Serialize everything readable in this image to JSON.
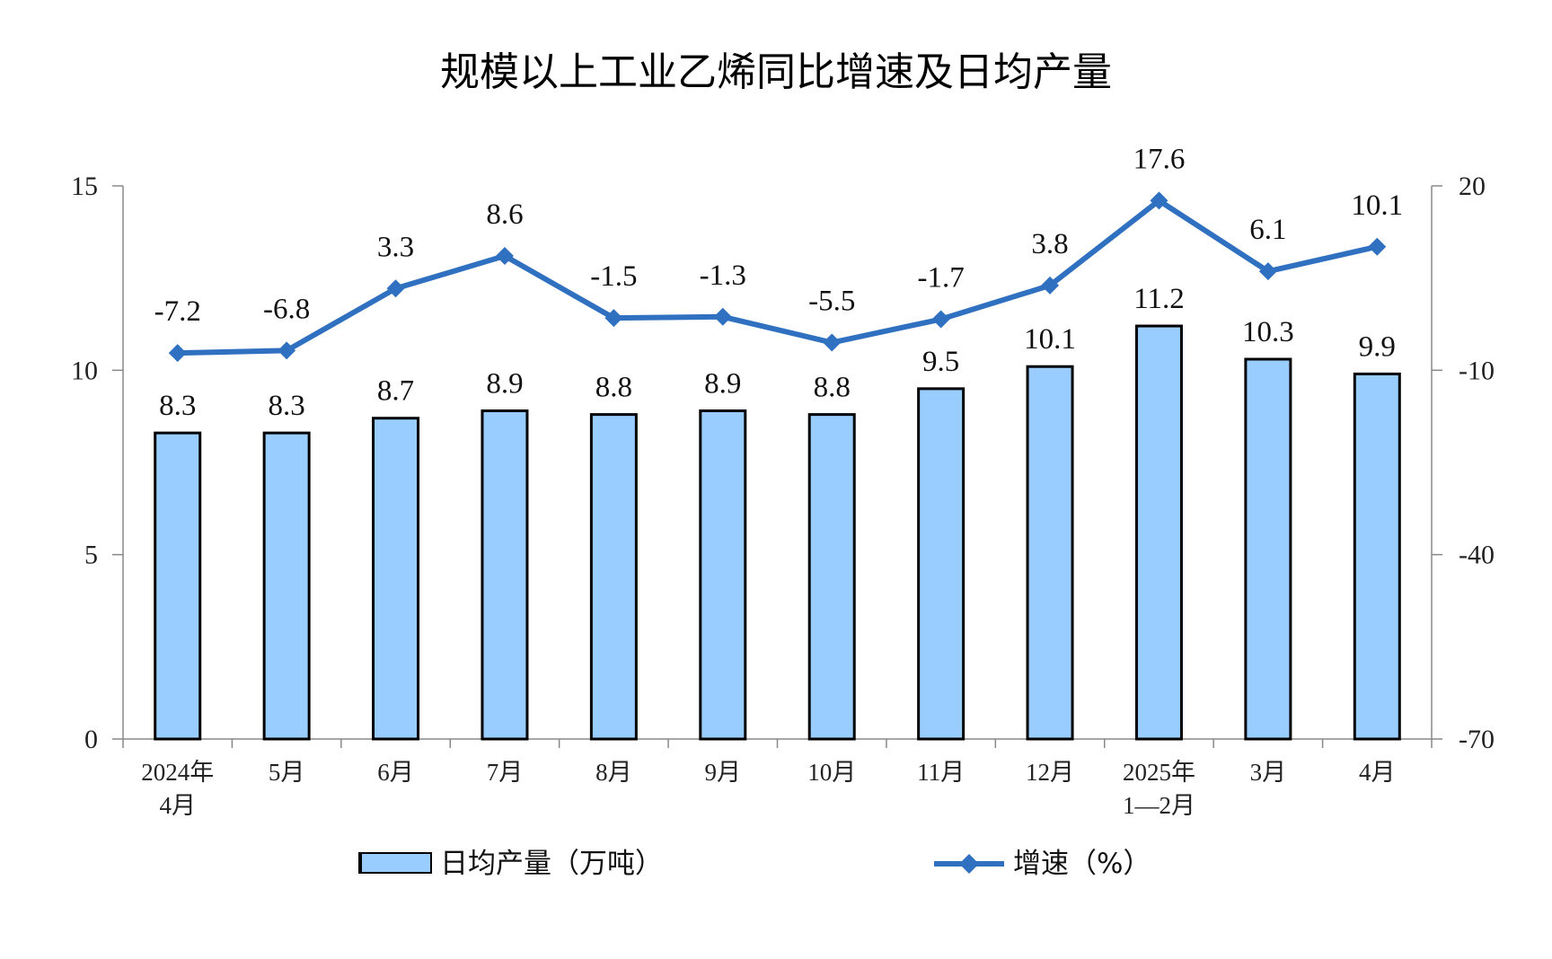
{
  "chart_data": {
    "type": "bar+line",
    "title": "规模以上工业乙烯同比增速及日均产量",
    "categories": [
      [
        "2024年",
        "4月"
      ],
      [
        "5月"
      ],
      [
        "6月"
      ],
      [
        "7月"
      ],
      [
        "8月"
      ],
      [
        "9月"
      ],
      [
        "10月"
      ],
      [
        "11月"
      ],
      [
        "12月"
      ],
      [
        "2025年",
        "1—2月"
      ],
      [
        "3月"
      ],
      [
        "4月"
      ]
    ],
    "series": [
      {
        "name": "日均产量（万吨）",
        "type": "bar",
        "axis": "left",
        "color": "#99CCFF",
        "values": [
          8.3,
          8.3,
          8.7,
          8.9,
          8.8,
          8.9,
          8.8,
          9.5,
          10.1,
          11.2,
          10.3,
          9.9
        ],
        "labels": [
          "8.3",
          "8.3",
          "8.7",
          "8.9",
          "8.8",
          "8.9",
          "8.8",
          "9.5",
          "10.1",
          "11.2",
          "10.3",
          "9.9"
        ]
      },
      {
        "name": "增速（%）",
        "type": "line",
        "axis": "right",
        "color": "#3070C0",
        "values": [
          -7.2,
          -6.8,
          3.3,
          8.6,
          -1.5,
          -1.3,
          -5.5,
          -1.7,
          3.8,
          17.6,
          6.1,
          10.1
        ],
        "labels": [
          "-7.2",
          "-6.8",
          "3.3",
          "8.6",
          "-1.5",
          "-1.3",
          "-5.5",
          "-1.7",
          "3.8",
          "17.6",
          "6.1",
          "10.1"
        ]
      }
    ],
    "left_axis": {
      "ylim": [
        0,
        15
      ],
      "ticks": [
        "0",
        "5",
        "10",
        "15"
      ]
    },
    "right_axis": {
      "ylim": [
        -70,
        20
      ],
      "ticks": [
        "-70",
        "-40",
        "-10",
        "20"
      ]
    },
    "legend_position": "bottom",
    "grid": false
  }
}
